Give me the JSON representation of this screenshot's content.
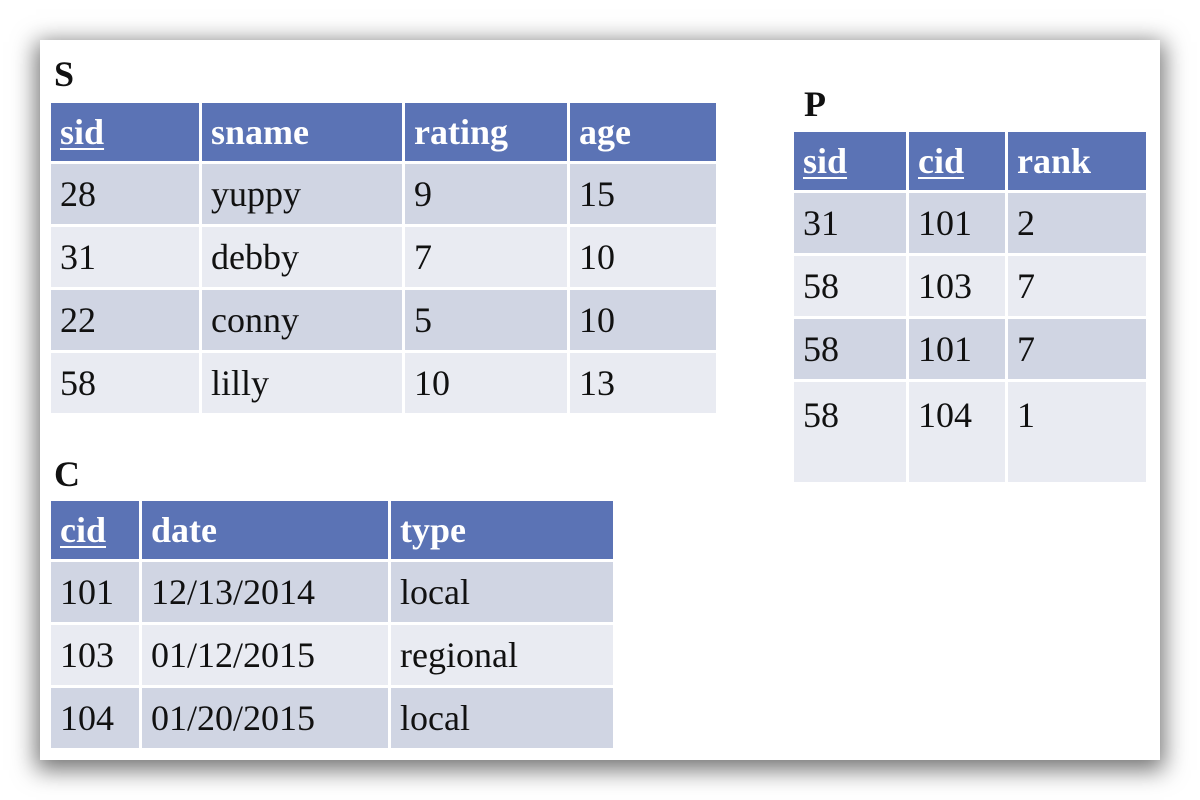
{
  "relations": {
    "S": {
      "title": "S",
      "headers": [
        "sid",
        "sname",
        "rating",
        "age"
      ],
      "rows": [
        [
          "28",
          "yuppy",
          "9",
          "15"
        ],
        [
          "31",
          "debby",
          "7",
          "10"
        ],
        [
          "22",
          "conny",
          "5",
          "10"
        ],
        [
          "58",
          "lilly",
          "10",
          "13"
        ]
      ]
    },
    "P": {
      "title": "P",
      "headers": [
        "sid",
        "cid",
        "rank"
      ],
      "rows": [
        [
          "31",
          "101",
          "2"
        ],
        [
          "58",
          "103",
          "7"
        ],
        [
          "58",
          "101",
          "7"
        ],
        [
          "58",
          "104",
          "1"
        ]
      ]
    },
    "C": {
      "title": "C",
      "headers": [
        "cid",
        "date",
        "type"
      ],
      "rows": [
        [
          "101",
          "12/13/2014",
          "local"
        ],
        [
          "103",
          "01/12/2015",
          "regional"
        ],
        [
          "104",
          "01/20/2015",
          "local"
        ]
      ]
    }
  },
  "colors": {
    "header": "#5b73b5",
    "row_odd": "#d0d5e3",
    "row_even": "#e9ebf2"
  }
}
